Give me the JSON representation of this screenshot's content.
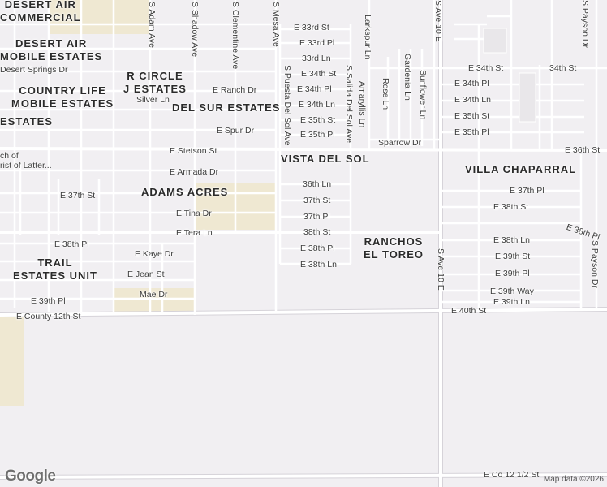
{
  "areas": [
    {
      "id": "desert-air-commercial",
      "text": "DESERT AIR\nCOMMERCIAL"
    },
    {
      "id": "desert-air-mobile-estates",
      "text": "DESERT AIR\nMOBILE ESTATES"
    },
    {
      "id": "r-circle-j-estates",
      "text": "R CIRCLE\nJ ESTATES"
    },
    {
      "id": "country-life-mobile-estates",
      "text": "COUNTRY LIFE\nMOBILE ESTATES"
    },
    {
      "id": "del-sur-estates",
      "text": "DEL SUR ESTATES"
    },
    {
      "id": "estates-partial",
      "text": "ESTATES"
    },
    {
      "id": "vista-del-sol",
      "text": "VISTA DEL SOL"
    },
    {
      "id": "villa-chaparral",
      "text": "VILLA CHAPARRAL"
    },
    {
      "id": "adams-acres",
      "text": "ADAMS ACRES"
    },
    {
      "id": "ranchos-el-toreo",
      "text": "RANCHOS\nEL TOREO"
    },
    {
      "id": "trail-estates-unit",
      "text": "TRAIL\nESTATES UNIT"
    }
  ],
  "streets": {
    "e_33rd_st": "E 33rd St",
    "e_33rd_pl": "E 33rd Pl",
    "33rd_ln": "33rd Ln",
    "desert_springs_dr": "Desert Springs Dr",
    "e_34th_st_a": "E 34th St",
    "e_34th_st_b": "E 34th St",
    "34th_st": "34th St",
    "e_ranch_dr": "E Ranch Dr",
    "e_34th_pl_a": "E 34th Pl",
    "e_34th_pl_b": "E 34th Pl",
    "silver_ln": "Silver Ln",
    "e_34th_ln_a": "E 34th Ln",
    "e_34th_ln_b": "E 34th Ln",
    "e_35th_st_a": "E 35th St",
    "e_35th_st_b": "E 35th St",
    "e_spur_dr": "E Spur Dr",
    "e_35th_pl_a": "E 35th Pl",
    "e_35th_pl_b": "E 35th Pl",
    "sparrow_dr": "Sparrow Dr",
    "e_stetson_st": "E Stetson St",
    "e_36th_st": "E 36th St",
    "e_armada_dr": "E Armada Dr",
    "36th_ln": "36th Ln",
    "e_37th_st": "E 37th St",
    "37th_st": "37th St",
    "e_37th_pl": "E 37th Pl",
    "e_tina_dr": "E Tina Dr",
    "37th_pl": "37th Pl",
    "e_38th_st": "E 38th St",
    "e_tera_ln": "E Tera Ln",
    "38th_st": "38th St",
    "e_38th_pl_a": "E 38th Pl",
    "e_38th_pl_b": "E 38th Pl",
    "e_38th_pl_c": "E 38th Pl",
    "e_38th_ln_a": "E 38th Ln",
    "e_38th_ln_b": "E 38th Ln",
    "e_kaye_dr": "E Kaye Dr",
    "e_39th_st": "E 39th St",
    "e_jean_st": "E Jean St",
    "e_39th_pl_a": "E 39th Pl",
    "e_39th_pl_b": "E 39th Pl",
    "e_39th_ln": "E 39th Ln",
    "mae_dr": "Mae Dr",
    "e_39th_way": "E 39th Way",
    "e_county_12th_st": "E County 12th St",
    "e_40th_st": "E 40th St",
    "e_co_12_half_st": "E Co 12 1/2 St",
    "s_adam_ave": "S Adam Ave",
    "s_shadow_ave": "S Shadow Ave",
    "s_clementine_ave": "S Clementine Ave",
    "s_mesa_ave": "S Mesa Ave",
    "s_puesta_del_sol_ave": "S Puesta Del Sol Ave",
    "s_salida_del_sol_ave": "S Salida Del Sol Ave",
    "larkspur_ln": "Larkspur Ln",
    "amaryllis_ln": "Amaryllis Ln",
    "rose_ln": "Rose Ln",
    "gardenia_ln": "Gardenia Ln",
    "sunflower_ln": "Sunflower Ln",
    "s_ave_10e_a": "S Ave 10 E",
    "s_ave_10e_b": "S Ave 10 E",
    "s_payson_dr_a": "S Payson Dr",
    "s_payson_dr_b": "S Payson Dr"
  },
  "poi": {
    "church_line1": "ch of",
    "church_line2": "rist of Latter..."
  },
  "branding": {
    "logo": "Google",
    "attribution": "Map data ©2026"
  },
  "colors": {
    "background": "#f1eff2",
    "road": "#ffffff",
    "road_edge": "#d3d0d6",
    "sand_area": "#efe7cf"
  }
}
